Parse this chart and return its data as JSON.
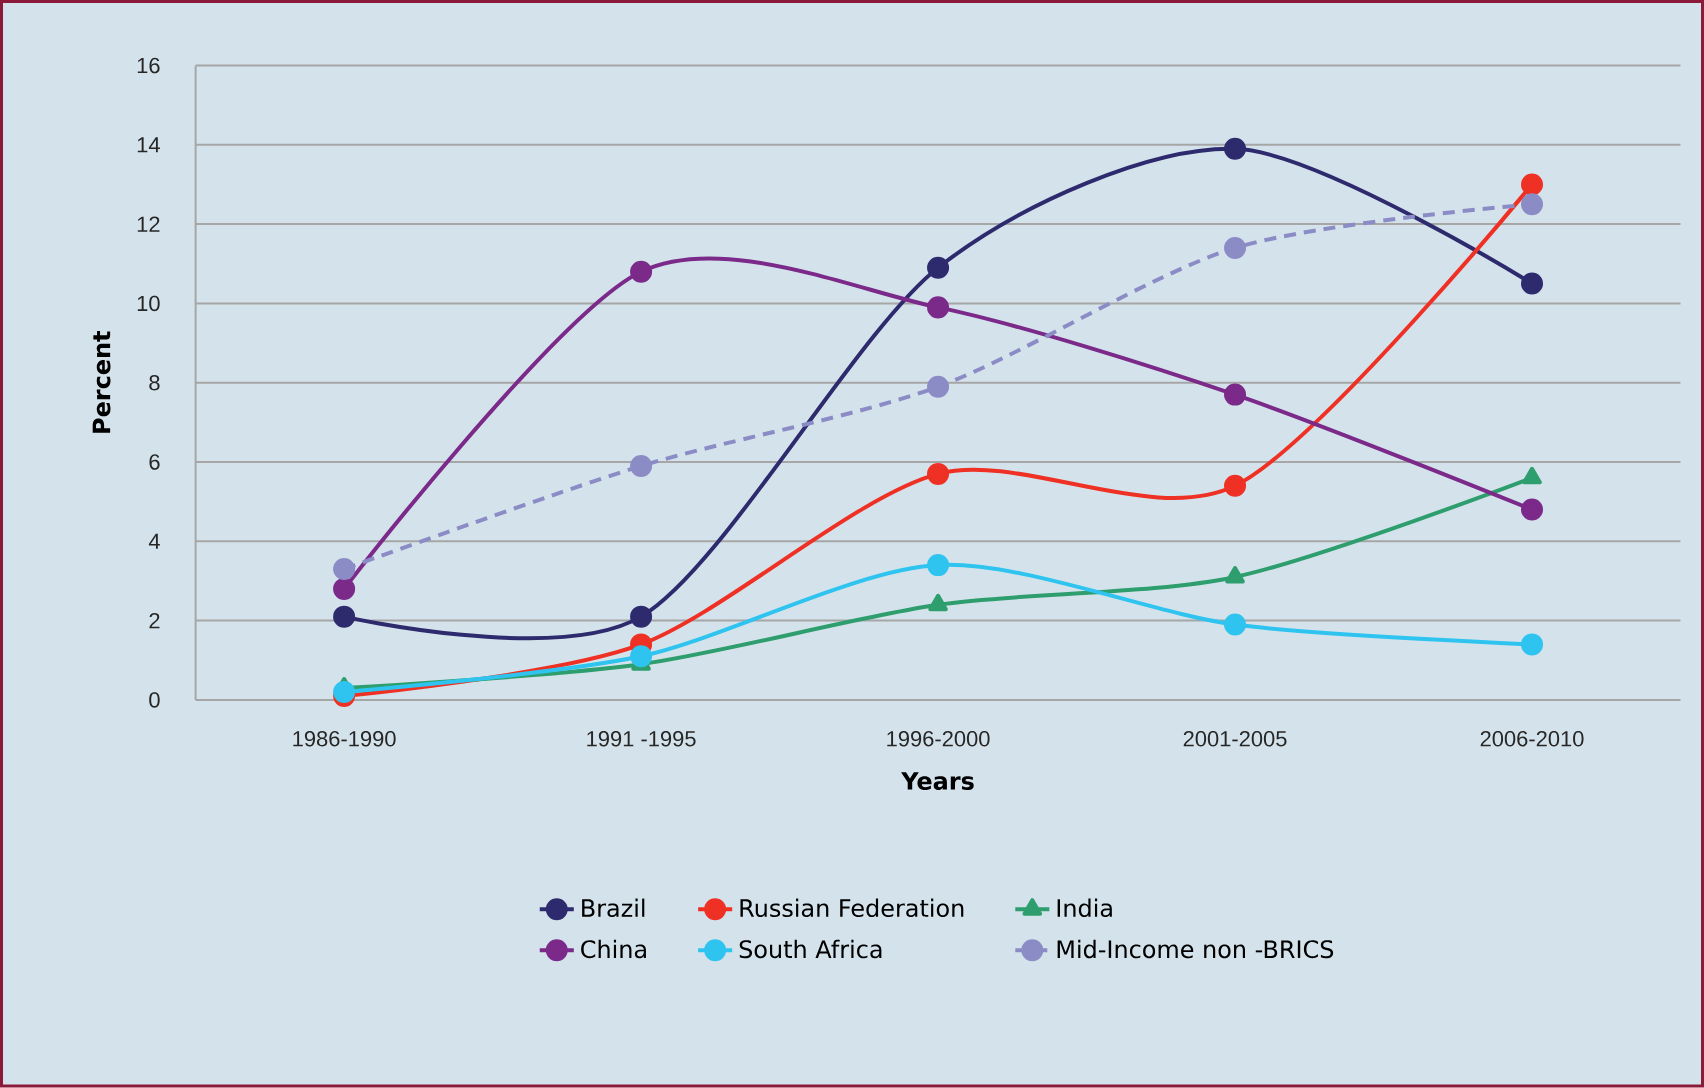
{
  "chart_data": {
    "type": "line",
    "xlabel": "Years",
    "ylabel": "Percent",
    "categories": [
      "1986-1990",
      "1991 -1995",
      "1996-2000",
      "2001-2005",
      "2006-2010"
    ],
    "series": [
      {
        "name": "Brazil",
        "color": "#2e2a6e",
        "marker": "circle",
        "line_style": "solid",
        "values": [
          2.1,
          2.1,
          10.9,
          13.9,
          10.5
        ]
      },
      {
        "name": "Russian Federation",
        "color": "#ee3124",
        "marker": "circle",
        "line_style": "solid",
        "values": [
          0.1,
          1.4,
          5.7,
          5.4,
          13.0
        ]
      },
      {
        "name": "India",
        "color": "#2e9e6e",
        "marker": "triangle",
        "line_style": "solid",
        "values": [
          0.3,
          0.9,
          2.4,
          3.1,
          5.6
        ]
      },
      {
        "name": "China",
        "color": "#7b2a8a",
        "marker": "circle",
        "line_style": "solid",
        "values": [
          2.8,
          10.8,
          9.9,
          7.7,
          4.8
        ]
      },
      {
        "name": "South Africa",
        "color": "#2ec4ef",
        "marker": "circle",
        "line_style": "solid",
        "values": [
          0.2,
          1.1,
          3.4,
          1.9,
          1.4
        ]
      },
      {
        "name": "Mid-Income non -BRICS",
        "color": "#8b8cc6",
        "marker": "circle",
        "line_style": "dashed",
        "values": [
          3.3,
          5.9,
          7.9,
          11.4,
          12.5
        ]
      }
    ],
    "ylim": [
      0,
      16
    ],
    "yticks": [
      0,
      2,
      4,
      6,
      8,
      10,
      12,
      14,
      16
    ],
    "grid": "y",
    "legend": "bottom"
  }
}
